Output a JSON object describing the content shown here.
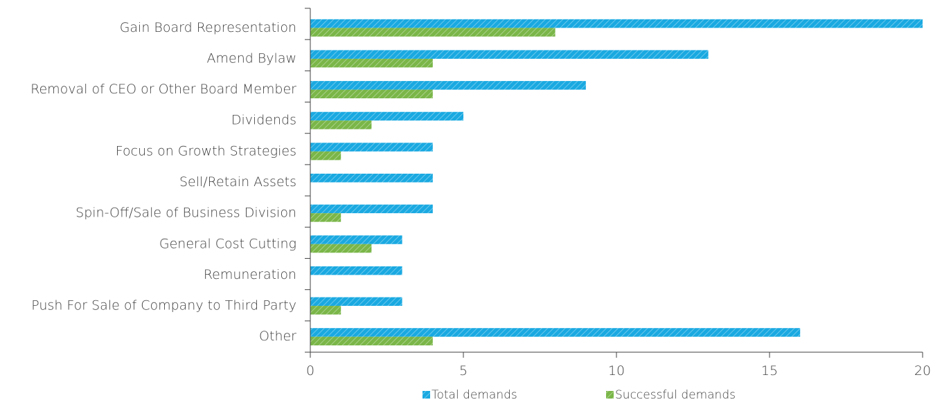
{
  "chart_data": {
    "type": "bar",
    "orientation": "horizontal",
    "title": "",
    "xlabel": "",
    "ylabel": "",
    "categories": [
      "Gain Board Representation",
      "Amend Bylaw",
      "Removal of CEO or Other Board Member",
      "Dividends",
      "Focus on Growth Strategies",
      "Sell/Retain Assets",
      "Spin-Off/Sale of Business Division",
      "General Cost Cutting",
      "Remuneration",
      "Push For Sale of Company to Third Party",
      "Other"
    ],
    "series": [
      {
        "name": "Total demands",
        "color": "#1aa9e1",
        "pattern": "diagonal-hatch",
        "values": [
          20,
          13,
          9,
          5,
          4,
          4,
          4,
          3,
          3,
          3,
          16
        ]
      },
      {
        "name": "Successful demands",
        "color": "#7ab648",
        "pattern": "diagonal-hatch",
        "values": [
          8,
          4,
          4,
          2,
          1,
          0,
          1,
          2,
          0,
          1,
          4
        ]
      }
    ],
    "xlim": [
      0,
      20
    ],
    "xticks": [
      "0",
      "5",
      "10",
      "15",
      "20"
    ],
    "grid": false,
    "legend_position": "bottom"
  }
}
